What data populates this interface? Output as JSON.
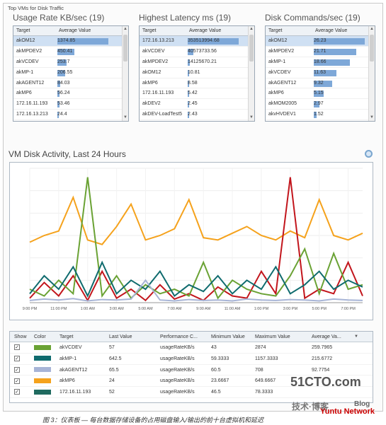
{
  "frame_title": "Top VMs for Disk Traffic",
  "panels": [
    {
      "title": "Usage Rate KB/sec (19)",
      "col_target": "Target",
      "col_value": "Average Value",
      "rows": [
        {
          "target": "akOM12",
          "value": "1374.85",
          "frac": 1.0
        },
        {
          "target": "akMPDEV2",
          "value": "450.41",
          "frac": 0.33
        },
        {
          "target": "akVCDEV",
          "value": "253.7",
          "frac": 0.18
        },
        {
          "target": "akMP-1",
          "value": "206.55",
          "frac": 0.15
        },
        {
          "target": "akAGENT12",
          "value": "84.03",
          "frac": 0.06
        },
        {
          "target": "akMP6",
          "value": "56.24",
          "frac": 0.04
        },
        {
          "target": "172.16.11.193",
          "value": "53.46",
          "frac": 0.04
        },
        {
          "target": "172.16.13.213",
          "value": "24.4",
          "frac": 0.02
        },
        {
          "target": "akMP5",
          "value": "24.28",
          "frac": 0.02
        }
      ]
    },
    {
      "title": "Highest Latency ms (19)",
      "col_target": "Target",
      "col_value": "Average Value",
      "rows": [
        {
          "target": "172.16.13.213",
          "value": "353513994.68",
          "frac": 1.0
        },
        {
          "target": "akVCDEV",
          "value": "40573733.56",
          "frac": 0.11
        },
        {
          "target": "akMPDEV2",
          "value": "14125670.21",
          "frac": 0.04
        },
        {
          "target": "akOM12",
          "value": "10.81",
          "frac": 0
        },
        {
          "target": "akMP6",
          "value": "8.58",
          "frac": 0
        },
        {
          "target": "172.16.11.193",
          "value": "5.42",
          "frac": 0
        },
        {
          "target": "akDEV2",
          "value": "2.45",
          "frac": 0
        },
        {
          "target": "akDEV-LoadTest5",
          "value": "2.43",
          "frac": 0
        },
        {
          "target": "akDEV4",
          "value": "2.05",
          "frac": 0
        }
      ]
    },
    {
      "title": "Disk Commands/sec (19)",
      "col_target": "Target",
      "col_value": "Average Value",
      "rows": [
        {
          "target": "akOM12",
          "value": "26.23",
          "frac": 1.0
        },
        {
          "target": "akMPDEV2",
          "value": "21.71",
          "frac": 0.83
        },
        {
          "target": "akMP-1",
          "value": "18.66",
          "frac": 0.71
        },
        {
          "target": "akVCDEV",
          "value": "11.63",
          "frac": 0.44
        },
        {
          "target": "akAGENT12",
          "value": "9.32",
          "frac": 0.36
        },
        {
          "target": "akMP6",
          "value": "5.15",
          "frac": 0.2
        },
        {
          "target": "akMOM2005",
          "value": "2.97",
          "frac": 0.11
        },
        {
          "target": "akvHVDEV1",
          "value": "1.52",
          "frac": 0.06
        },
        {
          "target": "akvHVDEV2",
          "value": "1.5",
          "frac": 0.06
        }
      ]
    }
  ],
  "chart_title": "VM Disk Activity, Last 24 Hours",
  "chart_data": {
    "type": "line",
    "x": [
      "9:00 PM",
      "10:00 PM",
      "11:00 PM",
      "12:00 AM",
      "1:00 AM",
      "2:00 AM",
      "3:00 AM",
      "4:00 AM",
      "5:00 AM",
      "6:00 AM",
      "7:00 AM",
      "8:00 AM",
      "9:00 AM",
      "10:00 AM",
      "11:00 AM",
      "12:00 PM",
      "1:00 PM",
      "2:00 PM",
      "3:00 PM",
      "4:00 PM",
      "5:00 PM",
      "6:00 PM",
      "7:00 PM",
      "8:00 PM"
    ],
    "series": [
      {
        "name": "akOM12",
        "color": "#f5a21c",
        "values": [
          1350,
          1500,
          1600,
          2350,
          1400,
          1300,
          1700,
          2200,
          1400,
          1500,
          1650,
          2300,
          1450,
          1400,
          1550,
          1700,
          1500,
          1400,
          1600,
          1450,
          2300,
          1500,
          1400,
          1550
        ]
      },
      {
        "name": "akMPDEV2",
        "color": "#c2151c",
        "values": [
          100,
          450,
          150,
          600,
          50,
          700,
          100,
          300,
          50,
          400,
          80,
          200,
          50,
          350,
          150,
          100,
          700,
          200,
          2800,
          100,
          300,
          200,
          900,
          150
        ]
      },
      {
        "name": "akVCDEV",
        "color": "#6aa234",
        "values": [
          300,
          150,
          500,
          200,
          2800,
          150,
          600,
          100,
          400,
          200,
          300,
          150,
          900,
          100,
          500,
          300,
          200,
          150,
          600,
          1200,
          200,
          1100,
          300,
          400
        ]
      },
      {
        "name": "akMP-1",
        "color": "#0f6b6e",
        "values": [
          200,
          600,
          300,
          800,
          150,
          900,
          200,
          500,
          300,
          700,
          150,
          400,
          250,
          600,
          200,
          500,
          300,
          800,
          200,
          400,
          700,
          300,
          500,
          350
        ]
      },
      {
        "name": "akAGENT12",
        "color": "#a7b4d6",
        "values": [
          50,
          80,
          60,
          90,
          40,
          70,
          60,
          80,
          500,
          60,
          40,
          70,
          50,
          60,
          40,
          80,
          60,
          50,
          70,
          60,
          40,
          80,
          60,
          50
        ]
      }
    ]
  },
  "lower_table": {
    "headers": [
      "Show",
      "Color",
      "Target",
      "Last Value",
      "Performance C...",
      "Minimum Value",
      "Maximum Value",
      "Average Va..."
    ],
    "sort_icon": "sort-desc-icon",
    "rows": [
      {
        "show": "✓",
        "color": "#6aa234",
        "target": "akVCDEV",
        "last": "57",
        "perf": "usageRateKB/s",
        "min": "43",
        "max": "2874",
        "avg": "259.7965"
      },
      {
        "show": "✓",
        "color": "#0f6b6e",
        "target": "akMP-1",
        "last": "642.5",
        "perf": "usageRateKB/s",
        "min": "59.3333",
        "max": "1157.3333",
        "avg": "215.6772"
      },
      {
        "show": "✓",
        "color": "#a7b4d6",
        "target": "akAGENT12",
        "last": "65.5",
        "perf": "usageRateKB/s",
        "min": "60.5",
        "max": "708",
        "avg": "92.7754"
      },
      {
        "show": "✓",
        "color": "#f5a21c",
        "target": "akMP6",
        "last": "24",
        "perf": "usageRateKB/s",
        "min": "23.6667",
        "max": "649.6667",
        "avg": ""
      },
      {
        "show": "✓",
        "color": "#1f6a5f",
        "target": "172.16.11.193",
        "last": "52",
        "perf": "usageRateKB/s",
        "min": "46.5",
        "max": "78.3333",
        "avg": ""
      }
    ]
  },
  "caption": "图 3：仪表板 — 每台数据存储设备的占用磁盘输入/输出的前十台虚拟机和延迟",
  "watermark": {
    "line1": "51CTO.com",
    "line2": "技术·博客",
    "line3": "Yuntu Network",
    "line4": "Blog"
  }
}
